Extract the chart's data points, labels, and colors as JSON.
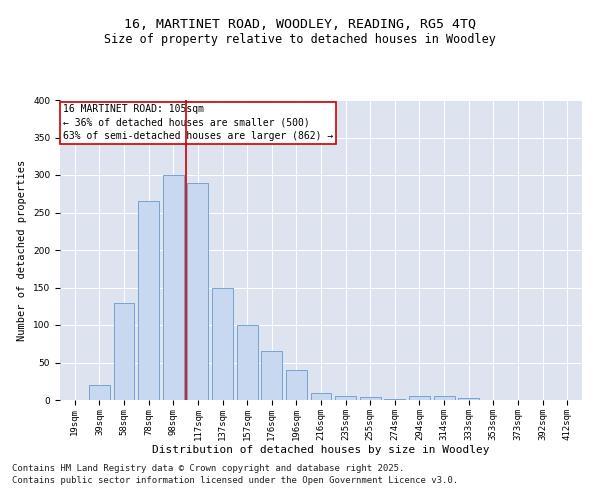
{
  "title_line1": "16, MARTINET ROAD, WOODLEY, READING, RG5 4TQ",
  "title_line2": "Size of property relative to detached houses in Woodley",
  "xlabel": "Distribution of detached houses by size in Woodley",
  "ylabel": "Number of detached properties",
  "categories": [
    "19sqm",
    "39sqm",
    "58sqm",
    "78sqm",
    "98sqm",
    "117sqm",
    "137sqm",
    "157sqm",
    "176sqm",
    "196sqm",
    "216sqm",
    "235sqm",
    "255sqm",
    "274sqm",
    "294sqm",
    "314sqm",
    "333sqm",
    "353sqm",
    "373sqm",
    "392sqm",
    "412sqm"
  ],
  "values": [
    0,
    20,
    130,
    265,
    300,
    290,
    150,
    100,
    65,
    40,
    9,
    6,
    4,
    1,
    5,
    5,
    3,
    0,
    0,
    0,
    0
  ],
  "bar_color": "#c8d8f0",
  "bar_edge_color": "#6699cc",
  "vline_x": 4.5,
  "vline_color": "#cc0000",
  "annotation_title": "16 MARTINET ROAD: 105sqm",
  "annotation_line1": "← 36% of detached houses are smaller (500)",
  "annotation_line2": "63% of semi-detached houses are larger (862) →",
  "annotation_box_color": "#ffffff",
  "annotation_box_edge": "#cc0000",
  "ylim": [
    0,
    400
  ],
  "yticks": [
    0,
    50,
    100,
    150,
    200,
    250,
    300,
    350,
    400
  ],
  "background_color": "#dde4f0",
  "footnote1": "Contains HM Land Registry data © Crown copyright and database right 2025.",
  "footnote2": "Contains public sector information licensed under the Open Government Licence v3.0.",
  "title_fontsize": 9.5,
  "subtitle_fontsize": 8.5,
  "xlabel_fontsize": 8,
  "ylabel_fontsize": 7.5,
  "tick_fontsize": 6.5,
  "footnote_fontsize": 6.5,
  "annotation_fontsize": 7
}
